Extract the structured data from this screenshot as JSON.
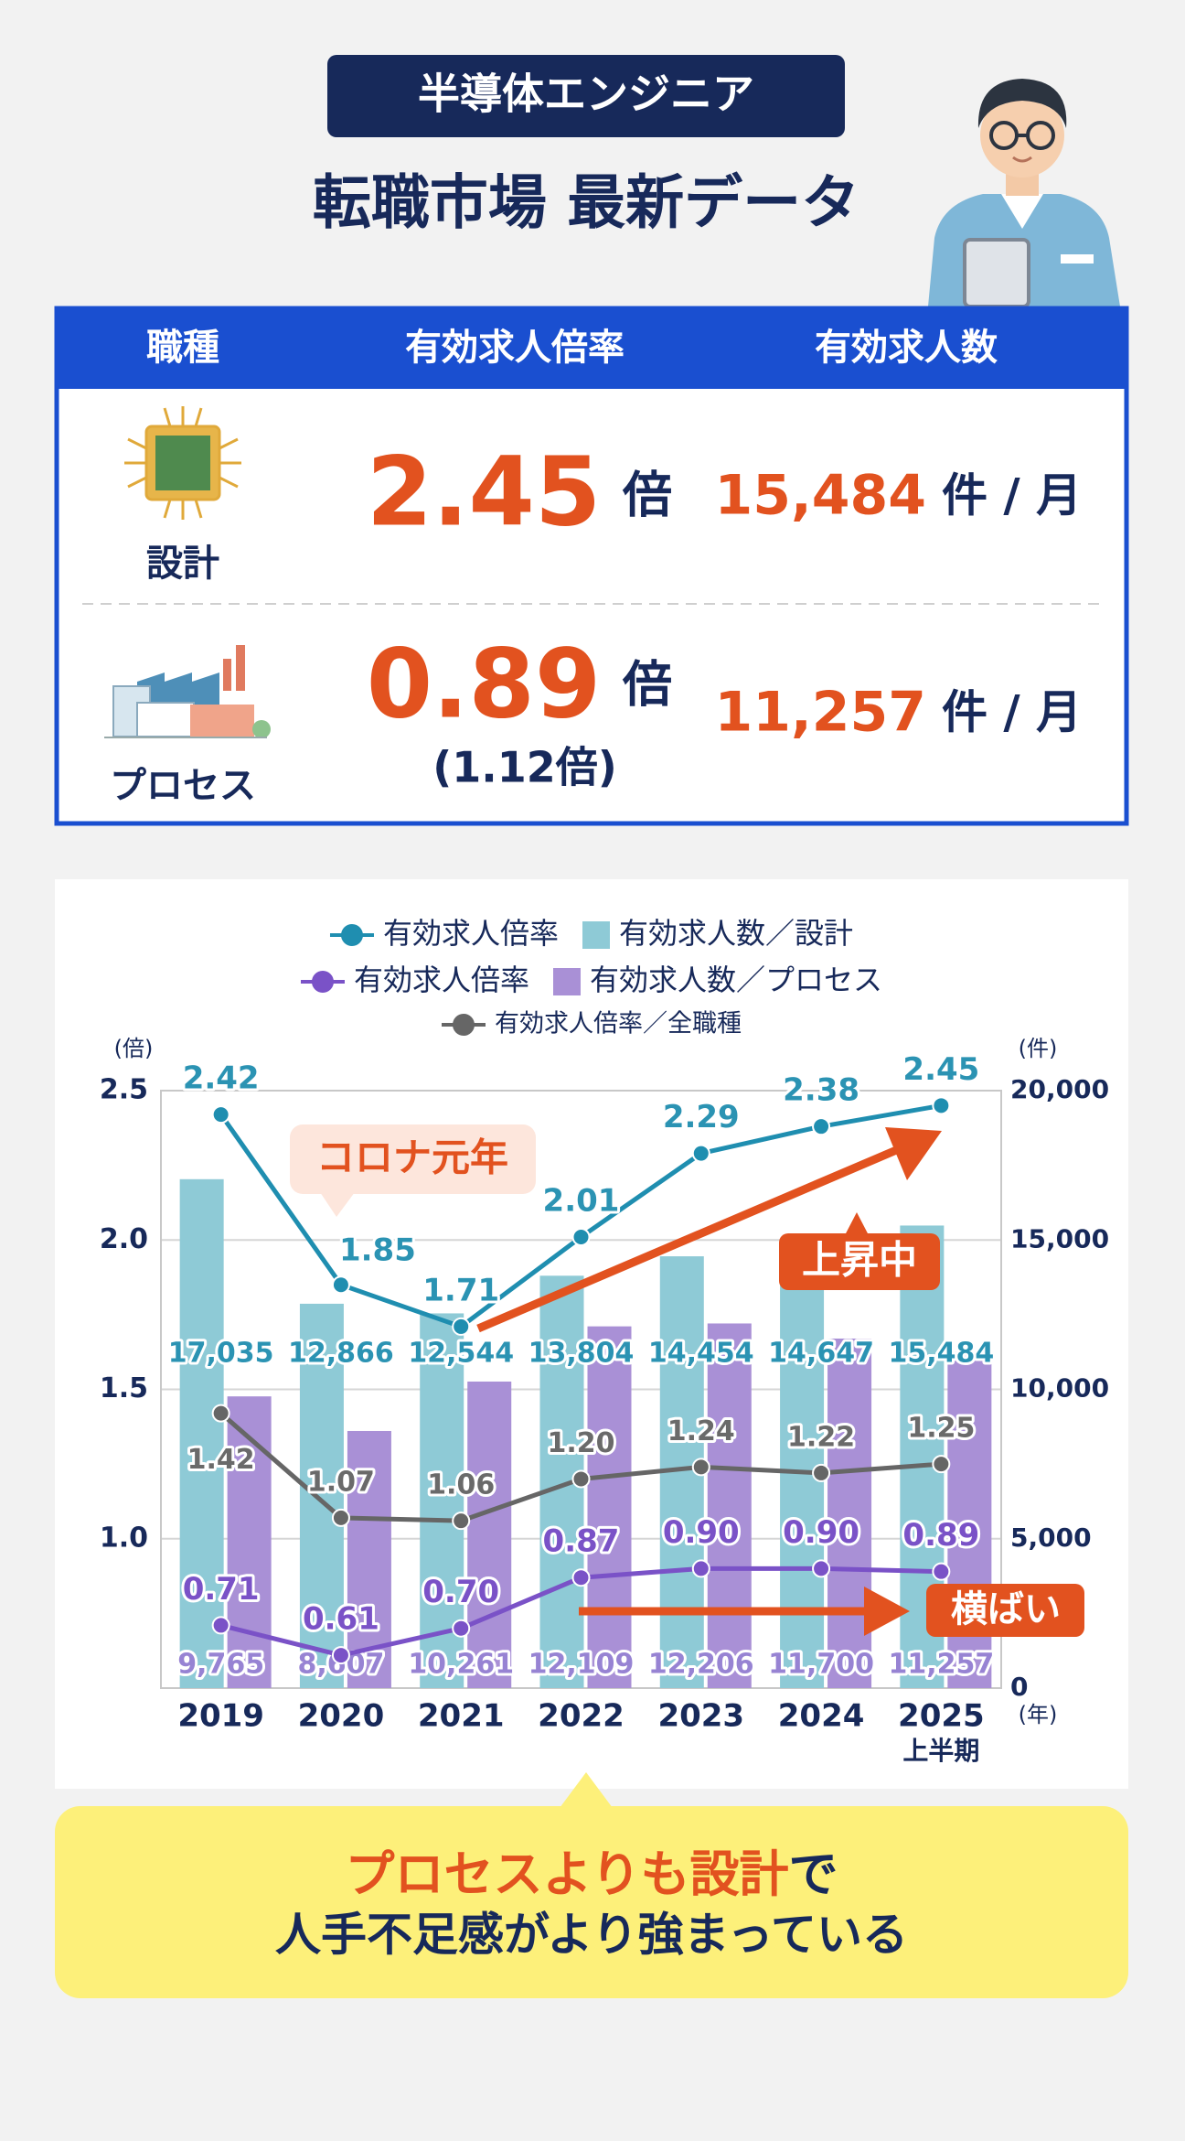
{
  "header": {
    "badge": "半導体エンジニア",
    "title": "転職市場 最新データ"
  },
  "table": {
    "headers": [
      "職種",
      "有効求人倍率",
      "有効求人数"
    ],
    "rows": [
      {
        "job": "設計",
        "ratio": "2.45",
        "ratio_unit": "倍",
        "count": "15,484",
        "count_unit": "件 / 月"
      },
      {
        "job": "プロセス",
        "ratio": "0.89",
        "ratio_unit": "倍",
        "ratio_note": "(1.12倍)",
        "count": "11,257",
        "count_unit": "件 / 月"
      }
    ]
  },
  "chart_data": {
    "type": "combo",
    "categories": [
      "2019",
      "2020",
      "2021",
      "2022",
      "2023",
      "2024",
      "2025"
    ],
    "category_sublabels": [
      null,
      null,
      null,
      null,
      null,
      null,
      "上半期"
    ],
    "y_label": "(倍)",
    "y2_label": "(件)",
    "x_label": "(年)",
    "ylim": [
      0.5,
      2.5
    ],
    "yticks": [
      {
        "value": 1,
        "label": "1.0"
      },
      1.5,
      {
        "value": 2,
        "label": "2.0"
      },
      2.5
    ],
    "y2lim": [
      0,
      20000
    ],
    "y2ticks": [
      0,
      {
        "value": 5000,
        "label": "5,000"
      },
      {
        "value": 10000,
        "label": "10,000"
      },
      {
        "value": 15000,
        "label": "15,000"
      },
      {
        "value": 20000,
        "label": "20,000"
      }
    ],
    "grid": true,
    "series": [
      {
        "name": "有効求人倍率",
        "type": "line",
        "color": "#1f8eb0",
        "values": [
          2.42,
          1.85,
          1.71,
          2.01,
          2.29,
          2.38,
          2.45
        ]
      },
      {
        "name": "有効求人数／設計",
        "type": "bar",
        "axis": "y2",
        "color": "#8ecad6",
        "values": [
          17035,
          12866,
          12544,
          13804,
          14454,
          14647,
          15484
        ],
        "value_labels": [
          "17,035",
          "12,866",
          "12,544",
          "13,804",
          "14,454",
          "14,647",
          "15,484"
        ]
      },
      {
        "name": "有効求人倍率",
        "type": "line",
        "color": "#7a52c7",
        "values": [
          0.71,
          0.61,
          0.7,
          0.87,
          0.9,
          0.9,
          0.89
        ],
        "value_labels": [
          "0.71",
          "0.61",
          "0.70",
          "0.87",
          "0.90",
          "0.90",
          "0.89"
        ]
      },
      {
        "name": "有効求人数／プロセス",
        "type": "bar",
        "axis": "y2",
        "color": "#a990d6",
        "values": [
          9765,
          8607,
          10261,
          12109,
          12206,
          11700,
          11257
        ],
        "value_labels": [
          "9,765",
          "8,607",
          "10,261",
          "12,109",
          "12,206",
          "11,700",
          "11,257"
        ]
      },
      {
        "name": "有効求人倍率／全職種",
        "type": "line",
        "color": "#666666",
        "values": [
          1.42,
          1.07,
          1.06,
          1.2,
          1.24,
          1.22,
          1.25
        ],
        "value_labels": [
          "1.42",
          "1.07",
          "1.06",
          "1.20",
          "1.24",
          "1.22",
          "1.25"
        ]
      }
    ],
    "annotations": [
      {
        "text": "コロナ元年"
      },
      {
        "text": "上昇中"
      },
      {
        "text": "横ばい"
      }
    ]
  },
  "callout": {
    "emphasis": "プロセスよりも設計",
    "rest": "で",
    "line2": "人手不足感がより強まっている"
  }
}
